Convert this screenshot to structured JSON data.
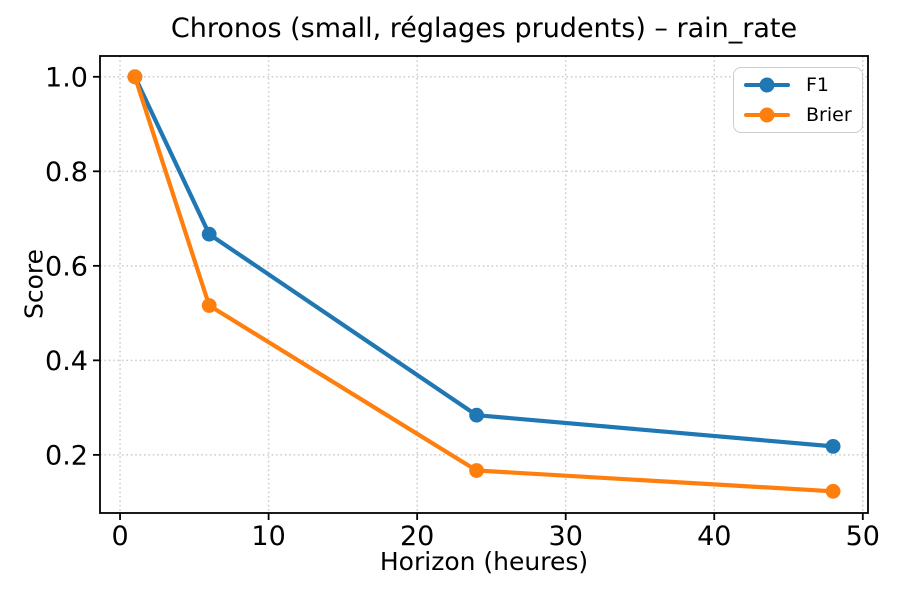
{
  "chart_data": {
    "type": "line",
    "title": "Chronos (small, réglages prudents) – rain_rate",
    "xlabel": "Horizon (heures)",
    "ylabel": "Score",
    "x": [
      1,
      6,
      24,
      48
    ],
    "series": [
      {
        "name": "F1",
        "color": "#1f77b4",
        "marker": "circle",
        "values": [
          1.0,
          0.667,
          0.284,
          0.218
        ]
      },
      {
        "name": "Brier",
        "color": "#ff7f0e",
        "marker": "circle",
        "values": [
          1.0,
          0.516,
          0.167,
          0.123
        ]
      }
    ],
    "xticks": [
      0,
      10,
      20,
      30,
      40,
      50
    ],
    "yticks": [
      0.2,
      0.4,
      0.6,
      0.8,
      1.0
    ],
    "xlim": [
      -1.35,
      50.35
    ],
    "ylim": [
      0.077,
      1.044
    ],
    "grid": true,
    "grid_style": "dotted",
    "grid_color": "#cccccc",
    "axis_color": "#000000",
    "background": "#ffffff",
    "legend_position": "upper right"
  }
}
